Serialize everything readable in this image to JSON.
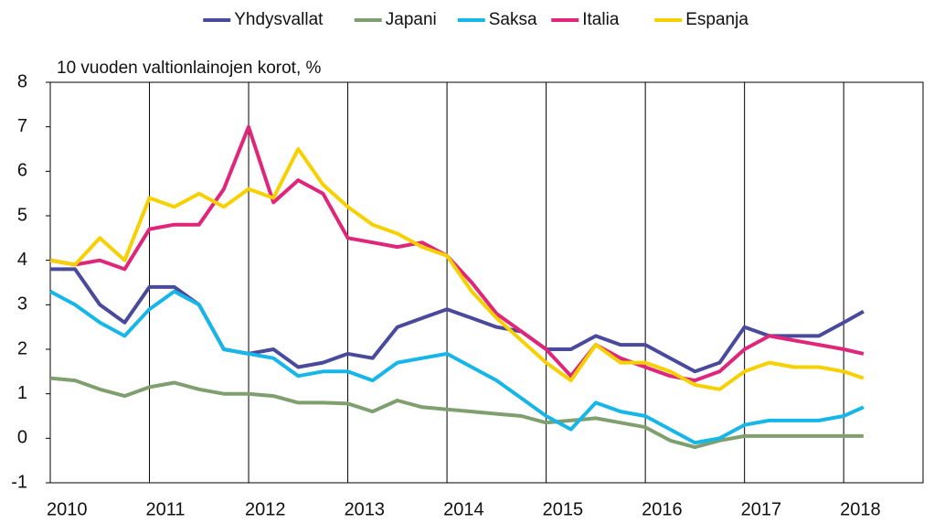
{
  "chart_data": {
    "type": "line",
    "y_label": "10 vuoden valtionlainojen korot, %",
    "x": [
      2010,
      2010.25,
      2010.5,
      2010.75,
      2011,
      2011.25,
      2011.5,
      2011.75,
      2012,
      2012.25,
      2012.5,
      2012.75,
      2013,
      2013.25,
      2013.5,
      2013.75,
      2014,
      2014.25,
      2014.5,
      2014.75,
      2015,
      2015.25,
      2015.5,
      2015.75,
      2016,
      2016.25,
      2016.5,
      2016.75,
      2017,
      2017.25,
      2017.5,
      2017.75,
      2018,
      2018.2
    ],
    "series": [
      {
        "name": "Yhdysvallat",
        "color": "#4a4a9c",
        "values": [
          3.8,
          3.8,
          3.0,
          2.6,
          3.4,
          3.4,
          3.0,
          2.0,
          1.9,
          2.0,
          1.6,
          1.7,
          1.9,
          1.8,
          2.5,
          2.7,
          2.9,
          2.7,
          2.5,
          2.4,
          2.0,
          2.0,
          2.3,
          2.1,
          2.1,
          1.8,
          1.5,
          1.7,
          2.5,
          2.3,
          2.3,
          2.3,
          2.6,
          2.85
        ]
      },
      {
        "name": "Japani",
        "color": "#7f9f6f",
        "values": [
          1.35,
          1.3,
          1.1,
          0.95,
          1.15,
          1.25,
          1.1,
          1.0,
          1.0,
          0.95,
          0.8,
          0.8,
          0.78,
          0.6,
          0.85,
          0.7,
          0.65,
          0.6,
          0.55,
          0.5,
          0.35,
          0.4,
          0.45,
          0.35,
          0.25,
          -0.05,
          -0.2,
          -0.05,
          0.05,
          0.05,
          0.05,
          0.05,
          0.05,
          0.05
        ]
      },
      {
        "name": "Saksa",
        "color": "#17b6e8",
        "values": [
          3.3,
          3.0,
          2.6,
          2.3,
          2.9,
          3.3,
          3.0,
          2.0,
          1.9,
          1.8,
          1.4,
          1.5,
          1.5,
          1.3,
          1.7,
          1.8,
          1.9,
          1.6,
          1.3,
          0.9,
          0.5,
          0.2,
          0.8,
          0.6,
          0.5,
          0.2,
          -0.1,
          0.0,
          0.3,
          0.4,
          0.4,
          0.4,
          0.5,
          0.7
        ]
      },
      {
        "name": "Italia",
        "color": "#e0267a",
        "values": [
          4.0,
          3.9,
          4.0,
          3.8,
          4.7,
          4.8,
          4.8,
          5.6,
          7.0,
          5.3,
          5.8,
          5.5,
          4.5,
          4.4,
          4.3,
          4.4,
          4.1,
          3.5,
          2.8,
          2.4,
          2.0,
          1.4,
          2.1,
          1.8,
          1.6,
          1.4,
          1.3,
          1.5,
          2.0,
          2.3,
          2.2,
          2.1,
          2.0,
          1.9
        ]
      },
      {
        "name": "Espanja",
        "color": "#f7d000",
        "values": [
          4.0,
          3.9,
          4.5,
          4.0,
          5.4,
          5.2,
          5.5,
          5.2,
          5.6,
          5.4,
          6.5,
          5.7,
          5.2,
          4.8,
          4.6,
          4.3,
          4.1,
          3.3,
          2.7,
          2.2,
          1.7,
          1.3,
          2.1,
          1.7,
          1.7,
          1.5,
          1.2,
          1.1,
          1.5,
          1.7,
          1.6,
          1.6,
          1.5,
          1.35
        ]
      }
    ],
    "xlim": [
      2010,
      2018.8
    ],
    "xticks": [
      2010,
      2011,
      2012,
      2013,
      2014,
      2015,
      2016,
      2017,
      2018
    ],
    "ylim": [
      -1,
      8
    ],
    "yticks": [
      -1,
      0,
      1,
      2,
      3,
      4,
      5,
      6,
      7,
      8
    ],
    "xgrid": true,
    "legend": "top"
  }
}
